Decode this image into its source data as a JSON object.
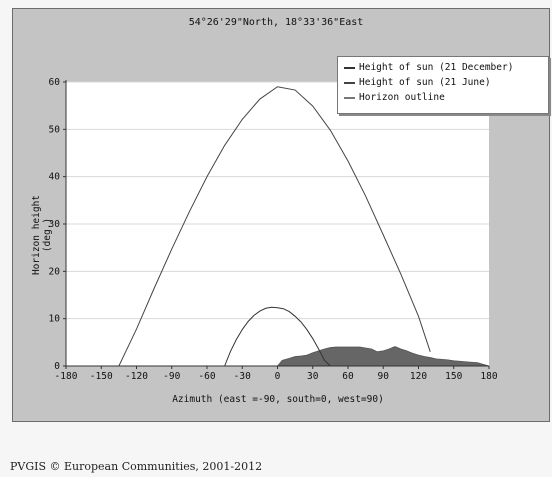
{
  "chart_data": {
    "type": "line",
    "title": "54°26'29\"North, 18°33'36\"East",
    "xlabel": "Azimuth (east =-90, south=0, west=90)",
    "ylabel": "Horizon height (deg.)",
    "xlim": [
      -180,
      180
    ],
    "ylim": [
      0,
      60
    ],
    "xticks": [
      -180,
      -150,
      -120,
      -90,
      -60,
      -30,
      0,
      30,
      60,
      90,
      120,
      150,
      180
    ],
    "yticks": [
      0,
      10,
      20,
      30,
      40,
      50,
      60
    ],
    "legend_position": "top-right",
    "series": [
      {
        "name": "Height of sun (21 December)",
        "color": "#333333",
        "x": [
          -45,
          -40,
          -35,
          -30,
          -25,
          -20,
          -15,
          -10,
          -5,
          0,
          5,
          10,
          15,
          20,
          25,
          30,
          35,
          40,
          45
        ],
        "y": [
          0,
          3.1,
          5.6,
          7.7,
          9.4,
          10.7,
          11.6,
          12.2,
          12.4,
          12.3,
          12.1,
          11.5,
          10.5,
          9.3,
          7.7,
          5.8,
          3.6,
          1.2,
          0
        ]
      },
      {
        "name": "Height of sun (21 June)",
        "color": "#444444",
        "x": [
          -135,
          -120,
          -105,
          -90,
          -75,
          -60,
          -45,
          -30,
          -15,
          0,
          15,
          30,
          45,
          60,
          75,
          90,
          105,
          120,
          130
        ],
        "y": [
          0,
          7.8,
          16.4,
          24.7,
          32.6,
          40.0,
          46.6,
          52.1,
          56.4,
          59,
          58.3,
          54.9,
          49.8,
          43.3,
          35.9,
          27.7,
          19.4,
          10.5,
          3
        ]
      },
      {
        "name": "Horizon outline",
        "color": "#666666",
        "x": [
          0,
          4,
          10,
          15,
          20,
          25,
          30,
          35,
          40,
          45,
          50,
          55,
          60,
          65,
          70,
          75,
          80,
          85,
          90,
          95,
          100,
          105,
          110,
          115,
          120,
          125,
          130,
          135,
          140,
          145,
          150,
          155,
          160,
          165,
          170,
          180
        ],
        "y": [
          0,
          1.2,
          1.6,
          2.0,
          2.1,
          2.3,
          2.8,
          3.2,
          3.6,
          3.9,
          4.0,
          4.0,
          4.0,
          4.0,
          4.0,
          3.8,
          3.6,
          3.0,
          3.2,
          3.6,
          4.1,
          3.6,
          3.2,
          2.7,
          2.3,
          2.0,
          1.8,
          1.5,
          1.4,
          1.3,
          1.1,
          1.0,
          0.9,
          0.8,
          0.7,
          0
        ]
      }
    ]
  },
  "footer": "PVGIS © European Communities, 2001-2012"
}
